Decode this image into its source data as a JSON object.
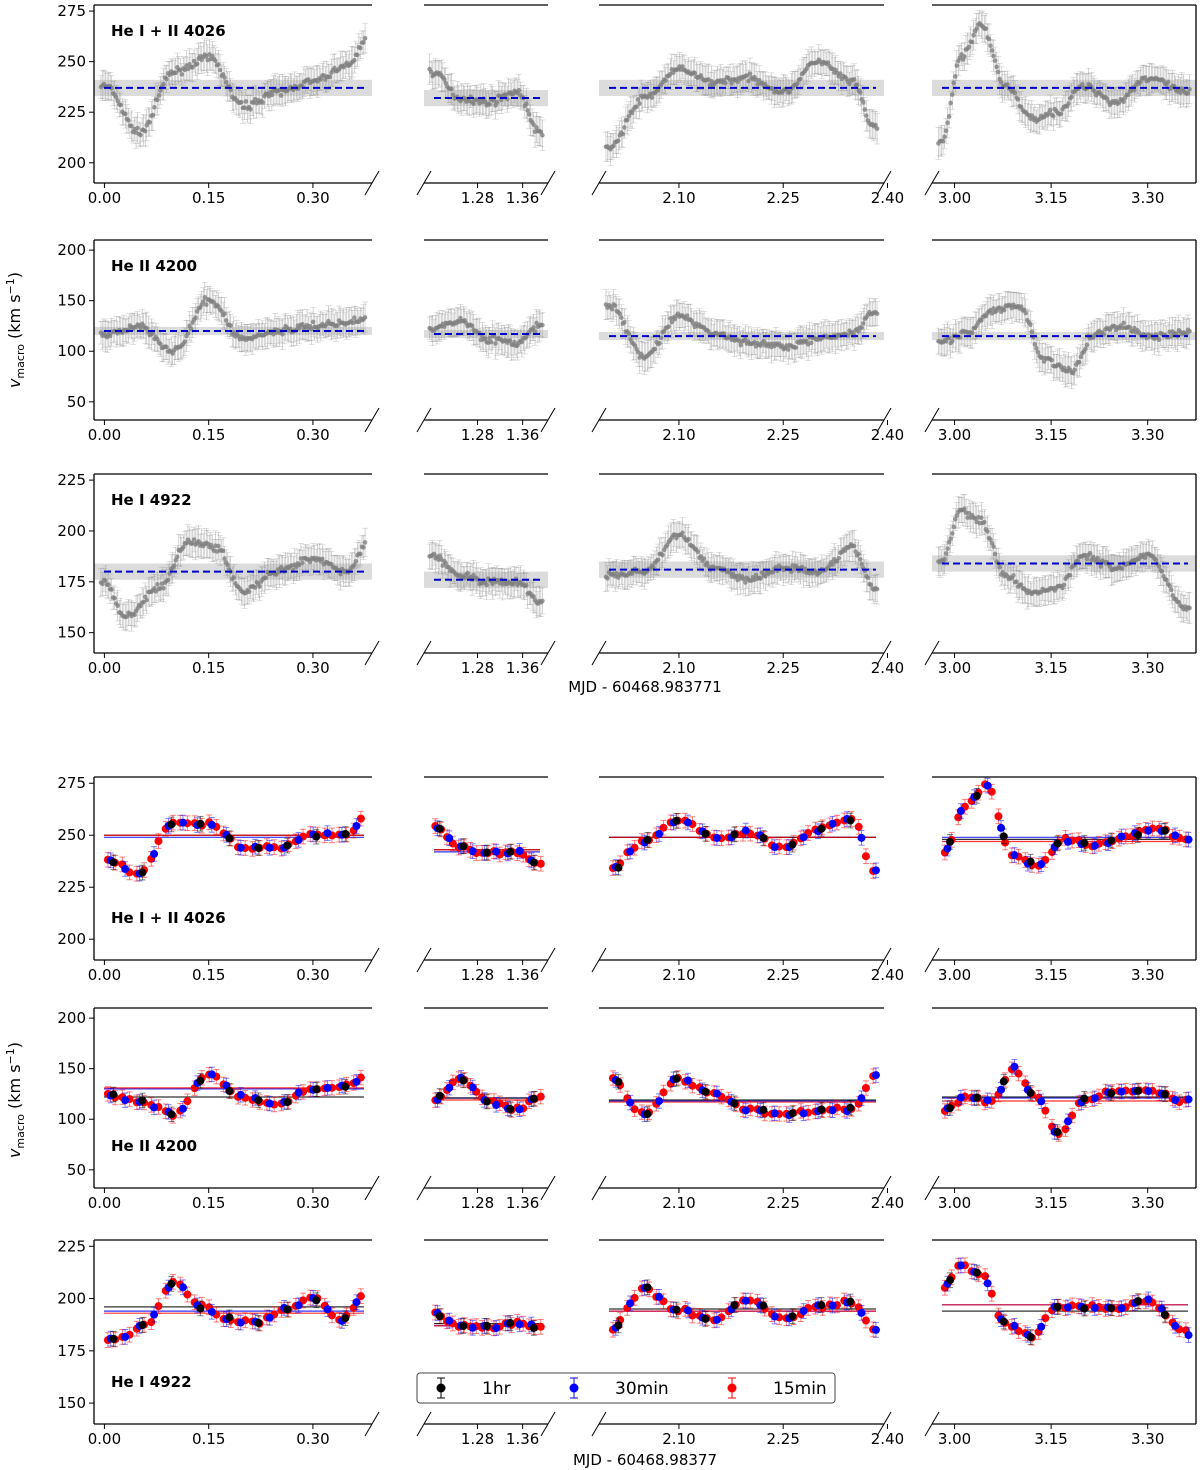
{
  "figure": {
    "top_xlabel": "MJD - 60468.983771",
    "bottom_xlabel": "MJD - 60468.98377",
    "ylabel_main": "v",
    "ylabel_sub": "macro",
    "ylabel_unit_pre": " (km s",
    "ylabel_unit_exp": "−1",
    "ylabel_unit_post": ")"
  },
  "colors": {
    "points": "#808080",
    "mean_line": "#0000cc",
    "band": "#d3d3d3",
    "one_hr": "#000000",
    "thirty_min": "#0000ff",
    "fifteen_min": "#ff0000"
  },
  "legend": {
    "placement": "bottom-center",
    "items": [
      "1hr",
      "30min",
      "15min"
    ]
  },
  "chart_data": [
    {
      "type": "scatter",
      "title": "He I + II 4026",
      "ylim": [
        190,
        278
      ],
      "yticks": [
        200,
        225,
        250,
        275
      ],
      "segments": [
        {
          "xlim": [
            -0.015,
            0.385
          ],
          "xticks": [
            0.0,
            0.15,
            0.3
          ],
          "x": [
            0.0,
            0.05,
            0.1,
            0.15,
            0.2,
            0.25,
            0.3,
            0.35,
            0.38
          ],
          "y": [
            238,
            215,
            245,
            252,
            228,
            235,
            240,
            248,
            262
          ],
          "mean": 237
        },
        {
          "xlim": [
            1.185,
            1.405
          ],
          "xticks": [
            1.28,
            1.36
          ],
          "x": [
            1.2,
            1.25,
            1.3,
            1.35,
            1.39
          ],
          "y": [
            245,
            232,
            230,
            235,
            215
          ],
          "mean": 232
        },
        {
          "xlim": [
            1.985,
            2.395
          ],
          "xticks": [
            2.1,
            2.25,
            2.4
          ],
          "x": [
            2.0,
            2.05,
            2.1,
            2.15,
            2.2,
            2.25,
            2.3,
            2.35,
            2.38
          ],
          "y": [
            208,
            232,
            246,
            240,
            242,
            235,
            250,
            240,
            218
          ],
          "mean": 237
        },
        {
          "xlim": [
            2.965,
            3.375
          ],
          "xticks": [
            3.0,
            3.15,
            3.3
          ],
          "x": [
            2.98,
            3.01,
            3.04,
            3.08,
            3.12,
            3.16,
            3.2,
            3.25,
            3.3,
            3.36
          ],
          "y": [
            210,
            252,
            268,
            238,
            222,
            225,
            238,
            230,
            242,
            235
          ],
          "mean": 237
        }
      ]
    },
    {
      "type": "scatter",
      "title": "He II 4200",
      "ylim": [
        32,
        210
      ],
      "yticks": [
        50,
        100,
        150,
        200
      ],
      "segments": [
        {
          "xlim": [
            -0.015,
            0.385
          ],
          "xticks": [
            0.0,
            0.15,
            0.3
          ],
          "x": [
            0.0,
            0.05,
            0.1,
            0.15,
            0.2,
            0.25,
            0.3,
            0.35,
            0.38
          ],
          "y": [
            115,
            125,
            100,
            150,
            112,
            120,
            125,
            128,
            135
          ],
          "mean": 120
        },
        {
          "xlim": [
            1.185,
            1.405
          ],
          "xticks": [
            1.28,
            1.36
          ],
          "x": [
            1.2,
            1.25,
            1.3,
            1.35,
            1.39
          ],
          "y": [
            122,
            130,
            112,
            108,
            125
          ],
          "mean": 117
        },
        {
          "xlim": [
            1.985,
            2.395
          ],
          "xticks": [
            2.1,
            2.25,
            2.4
          ],
          "x": [
            2.0,
            2.05,
            2.1,
            2.15,
            2.2,
            2.25,
            2.3,
            2.35,
            2.38
          ],
          "y": [
            145,
            95,
            135,
            118,
            108,
            105,
            112,
            118,
            140
          ],
          "mean": 115
        },
        {
          "xlim": [
            2.965,
            3.375
          ],
          "xticks": [
            3.0,
            3.15,
            3.3
          ],
          "x": [
            2.98,
            3.02,
            3.06,
            3.1,
            3.14,
            3.18,
            3.22,
            3.26,
            3.3,
            3.36
          ],
          "y": [
            110,
            118,
            140,
            145,
            92,
            80,
            118,
            125,
            115,
            118
          ],
          "mean": 115
        }
      ]
    },
    {
      "type": "scatter",
      "title": "He I 4922",
      "ylim": [
        140,
        228
      ],
      "yticks": [
        150,
        175,
        200,
        225
      ],
      "segments": [
        {
          "xlim": [
            -0.015,
            0.385
          ],
          "xticks": [
            0.0,
            0.15,
            0.3
          ],
          "x": [
            0.0,
            0.03,
            0.08,
            0.12,
            0.16,
            0.2,
            0.25,
            0.3,
            0.35,
            0.38
          ],
          "y": [
            175,
            158,
            172,
            195,
            192,
            170,
            180,
            186,
            180,
            195
          ],
          "mean": 180
        },
        {
          "xlim": [
            1.185,
            1.405
          ],
          "xticks": [
            1.28,
            1.36
          ],
          "x": [
            1.2,
            1.25,
            1.3,
            1.35,
            1.39
          ],
          "y": [
            188,
            178,
            175,
            175,
            165
          ],
          "mean": 176
        },
        {
          "xlim": [
            1.985,
            2.395
          ],
          "xticks": [
            2.1,
            2.25,
            2.4
          ],
          "x": [
            2.0,
            2.05,
            2.1,
            2.15,
            2.2,
            2.25,
            2.3,
            2.35,
            2.38
          ],
          "y": [
            178,
            180,
            198,
            182,
            176,
            182,
            180,
            192,
            172
          ],
          "mean": 181
        },
        {
          "xlim": [
            2.965,
            3.375
          ],
          "xticks": [
            3.0,
            3.15,
            3.3
          ],
          "x": [
            2.98,
            3.01,
            3.04,
            3.08,
            3.12,
            3.16,
            3.2,
            3.25,
            3.3,
            3.36
          ],
          "y": [
            185,
            210,
            205,
            178,
            170,
            172,
            188,
            182,
            188,
            162
          ],
          "mean": 184
        }
      ]
    },
    {
      "type": "scatter",
      "title": "He I + II 4026",
      "ylim": [
        190,
        278
      ],
      "yticks": [
        200,
        225,
        250,
        275
      ],
      "segments": [
        {
          "xlim": [
            -0.015,
            0.385
          ],
          "xticks": [
            0.0,
            0.15,
            0.3
          ],
          "x": [
            0.0,
            0.05,
            0.1,
            0.15,
            0.2,
            0.25,
            0.3,
            0.35,
            0.38
          ],
          "y": [
            238,
            232,
            256,
            256,
            244,
            244,
            250,
            250,
            261
          ],
          "means": {
            "1hr": 250,
            "30min": 249,
            "15min": 250
          }
        },
        {
          "xlim": [
            1.185,
            1.405
          ],
          "xticks": [
            1.28,
            1.36
          ],
          "x": [
            1.2,
            1.25,
            1.3,
            1.35,
            1.39
          ],
          "y": [
            255,
            244,
            241,
            242,
            236
          ],
          "means": {
            "1hr": 243,
            "30min": 242,
            "15min": 243
          }
        },
        {
          "xlim": [
            1.985,
            2.395
          ],
          "xticks": [
            2.1,
            2.25,
            2.4
          ],
          "x": [
            2.0,
            2.05,
            2.1,
            2.15,
            2.2,
            2.25,
            2.3,
            2.35,
            2.38
          ],
          "y": [
            233,
            247,
            257,
            249,
            251,
            244,
            253,
            258,
            233
          ],
          "means": {
            "1hr": 249,
            "30min": 249,
            "15min": 249
          }
        },
        {
          "xlim": [
            2.965,
            3.375
          ],
          "xticks": [
            3.0,
            3.15,
            3.3
          ],
          "x": [
            2.98,
            3.02,
            3.05,
            3.09,
            3.13,
            3.17,
            3.22,
            3.27,
            3.31,
            3.36
          ],
          "y": [
            241,
            265,
            274,
            240,
            236,
            248,
            245,
            250,
            253,
            248
          ],
          "means": {
            "1hr": 248,
            "30min": 249,
            "15min": 247
          }
        }
      ]
    },
    {
      "type": "scatter",
      "title": "He II 4200",
      "ylim": [
        32,
        210
      ],
      "yticks": [
        50,
        100,
        150,
        200
      ],
      "segments": [
        {
          "xlim": [
            -0.015,
            0.385
          ],
          "xticks": [
            0.0,
            0.15,
            0.3
          ],
          "x": [
            0.0,
            0.05,
            0.1,
            0.15,
            0.2,
            0.25,
            0.3,
            0.35,
            0.38
          ],
          "y": [
            125,
            118,
            105,
            145,
            122,
            115,
            130,
            133,
            145
          ],
          "means": {
            "1hr": 122,
            "30min": 130,
            "15min": 131
          }
        },
        {
          "xlim": [
            1.185,
            1.405
          ],
          "xticks": [
            1.28,
            1.36
          ],
          "x": [
            1.2,
            1.25,
            1.3,
            1.35,
            1.39
          ],
          "y": [
            118,
            140,
            118,
            110,
            122
          ],
          "means": {
            "1hr": 121,
            "30min": 121,
            "15min": 119
          }
        },
        {
          "xlim": [
            1.985,
            2.395
          ],
          "xticks": [
            2.1,
            2.25,
            2.4
          ],
          "x": [
            2.0,
            2.05,
            2.1,
            2.15,
            2.2,
            2.25,
            2.3,
            2.35,
            2.38
          ],
          "y": [
            142,
            105,
            140,
            125,
            110,
            105,
            108,
            110,
            142
          ],
          "means": {
            "1hr": 119,
            "30min": 118,
            "15min": 117
          }
        },
        {
          "xlim": [
            2.965,
            3.375
          ],
          "xticks": [
            3.0,
            3.15,
            3.3
          ],
          "x": [
            2.98,
            3.02,
            3.06,
            3.09,
            3.13,
            3.16,
            3.2,
            3.25,
            3.3,
            3.36
          ],
          "y": [
            108,
            122,
            118,
            150,
            120,
            85,
            118,
            128,
            128,
            118
          ],
          "means": {
            "1hr": 122,
            "30min": 121,
            "15min": 118
          }
        }
      ]
    },
    {
      "type": "scatter",
      "title": "He I 4922",
      "ylim": [
        140,
        228
      ],
      "yticks": [
        150,
        175,
        200,
        225
      ],
      "segments": [
        {
          "xlim": [
            -0.015,
            0.385
          ],
          "xticks": [
            0.0,
            0.15,
            0.3
          ],
          "x": [
            0.0,
            0.03,
            0.06,
            0.1,
            0.14,
            0.18,
            0.22,
            0.26,
            0.3,
            0.34,
            0.38
          ],
          "y": [
            180,
            182,
            188,
            208,
            196,
            190,
            188,
            195,
            200,
            190,
            203
          ],
          "means": {
            "1hr": 196,
            "30min": 194,
            "15min": 193
          }
        },
        {
          "xlim": [
            1.185,
            1.405
          ],
          "xticks": [
            1.28,
            1.36
          ],
          "x": [
            1.2,
            1.25,
            1.3,
            1.35,
            1.39
          ],
          "y": [
            193,
            187,
            186,
            188,
            186
          ],
          "means": {
            "1hr": 188,
            "30min": 187,
            "15min": 187
          }
        },
        {
          "xlim": [
            1.985,
            2.395
          ],
          "xticks": [
            2.1,
            2.25,
            2.4
          ],
          "x": [
            2.0,
            2.05,
            2.1,
            2.15,
            2.2,
            2.25,
            2.3,
            2.35,
            2.38
          ],
          "y": [
            185,
            205,
            194,
            190,
            200,
            190,
            196,
            198,
            186
          ],
          "means": {
            "1hr": 195,
            "30min": 194,
            "15min": 194
          }
        },
        {
          "xlim": [
            2.965,
            3.375
          ],
          "xticks": [
            3.0,
            3.15,
            3.3
          ],
          "x": [
            2.98,
            3.01,
            3.04,
            3.08,
            3.12,
            3.16,
            3.2,
            3.25,
            3.3,
            3.36
          ],
          "y": [
            205,
            216,
            212,
            188,
            182,
            196,
            196,
            195,
            199,
            184
          ],
          "means": {
            "1hr": 194,
            "30min": 197,
            "15min": 197
          }
        }
      ]
    }
  ]
}
